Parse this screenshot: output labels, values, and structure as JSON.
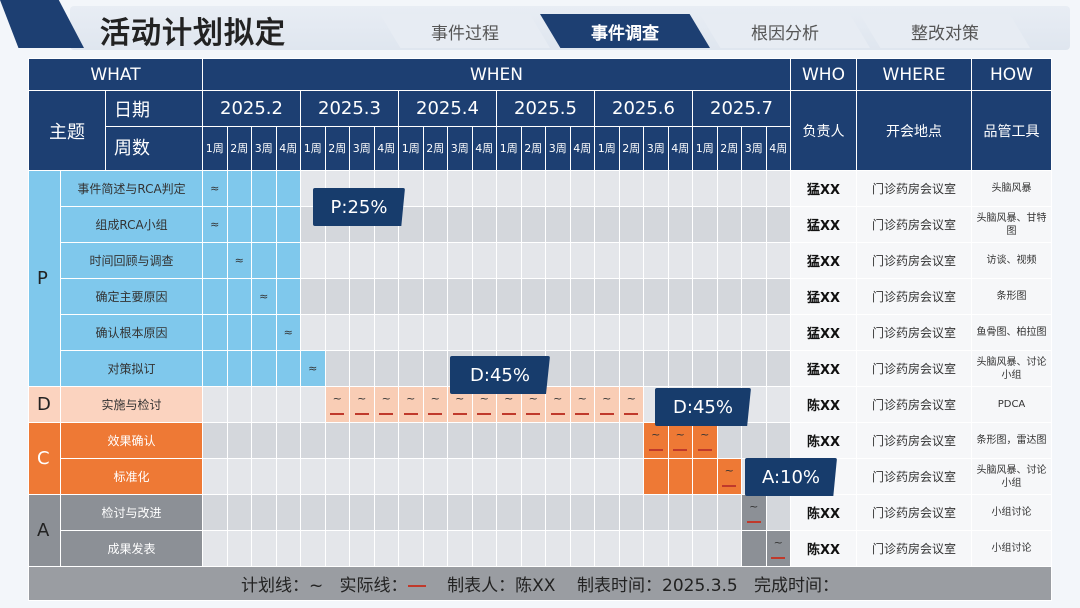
{
  "page_title": "活动计划拟定",
  "tabs": [
    {
      "label": "事件过程",
      "active": false
    },
    {
      "label": "事件调查",
      "active": true
    },
    {
      "label": "根因分析",
      "active": false
    },
    {
      "label": "整改对策",
      "active": false
    }
  ],
  "header": {
    "what": "WHAT",
    "when": "WHEN",
    "who": "WHO",
    "where": "WHERE",
    "how": "HOW",
    "theme": "主题",
    "date_label": "日期",
    "weeks_label": "周数",
    "owner_label": "负责人",
    "place_label": "开会地点",
    "tool_label": "品管工具"
  },
  "months": [
    "2025.2",
    "2025.3",
    "2025.4",
    "2025.5",
    "2025.6",
    "2025.7"
  ],
  "week_labels": [
    "1周",
    "2周",
    "3周",
    "4周"
  ],
  "plan_mark": "≈",
  "actual_mark": "~",
  "phases": [
    {
      "label": "P",
      "color": "#7fc8ec"
    },
    {
      "label": "D",
      "color": "#fbd3bf"
    },
    {
      "label": "C",
      "color": "#ee7935"
    },
    {
      "label": "A",
      "color": "#8c9096"
    }
  ],
  "rows": [
    {
      "task": "事件简述与RCA判定",
      "owner": "猛XX",
      "place": "门诊药房会议室",
      "tool": "头脑风暴"
    },
    {
      "task": "组成RCA小组",
      "owner": "猛XX",
      "place": "门诊药房会议室",
      "tool": "头脑风暴、甘特图"
    },
    {
      "task": "时间回顾与调查",
      "owner": "猛XX",
      "place": "门诊药房会议室",
      "tool": "访谈、视频"
    },
    {
      "task": "确定主要原因",
      "owner": "猛XX",
      "place": "门诊药房会议室",
      "tool": "条形图"
    },
    {
      "task": "确认根本原因",
      "owner": "猛XX",
      "place": "门诊药房会议室",
      "tool": "鱼骨图、柏拉图"
    },
    {
      "task": "对策拟订",
      "owner": "猛XX",
      "place": "门诊药房会议室",
      "tool": "头脑风暴、讨论小组"
    },
    {
      "task": "实施与检讨",
      "owner": "陈XX",
      "place": "门诊药房会议室",
      "tool": "PDCA"
    },
    {
      "task": "效果确认",
      "owner": "陈XX",
      "place": "门诊药房会议室",
      "tool": "条形图，雷达图"
    },
    {
      "task": "标准化",
      "owner": "",
      "place": "门诊药房会议室",
      "tool": "头脑风暴、讨论小组"
    },
    {
      "task": "检讨与改进",
      "owner": "陈XX",
      "place": "门诊药房会议室",
      "tool": "小组讨论"
    },
    {
      "task": "成果发表",
      "owner": "陈XX",
      "place": "门诊药房会议室",
      "tool": "小组讨论"
    }
  ],
  "callouts": {
    "p": "P:25%",
    "d1": "D:45%",
    "d2": "D:45%",
    "a": "A:10%"
  },
  "footer": {
    "plan_line": "计划线：~",
    "actual_line": "实际线：",
    "maker": "制表人：陈XX",
    "made_time": "制表时间：2025.3.5",
    "finish_time": "完成时间："
  }
}
